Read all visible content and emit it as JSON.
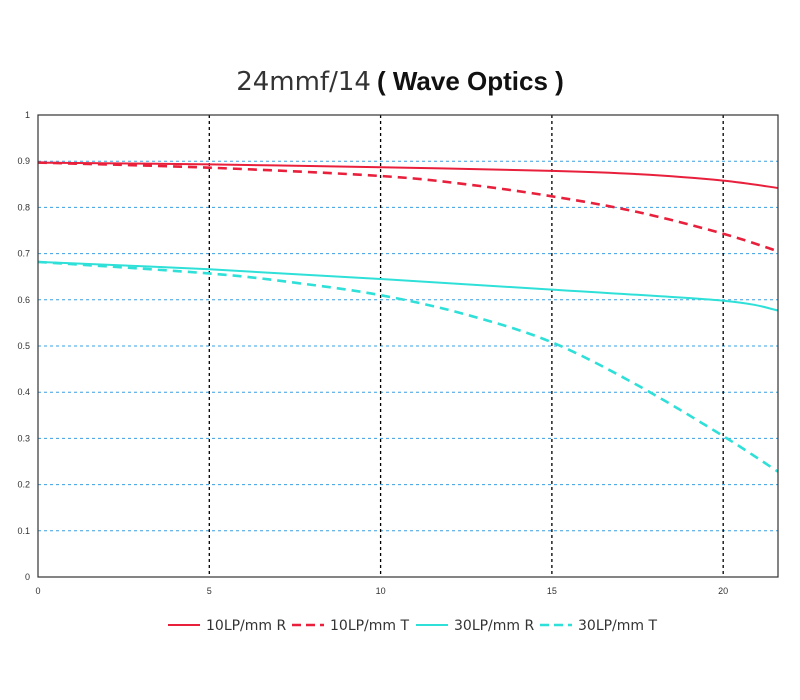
{
  "chart_data": {
    "type": "line",
    "title": "24mmf/14",
    "subtitle": "( Wave Optics )",
    "xlabel": "",
    "ylabel": "",
    "xlim": [
      0,
      21.6
    ],
    "ylim": [
      0,
      1
    ],
    "x_ticks": [
      0,
      5,
      10,
      15,
      20
    ],
    "x_tick_labels": [
      "0",
      "5",
      "10",
      "15",
      "20"
    ],
    "y_ticks": [
      0,
      0.1,
      0.2,
      0.3,
      0.4,
      0.5,
      0.6,
      0.7,
      0.8,
      0.9,
      1
    ],
    "y_tick_labels": [
      "0",
      "0.1",
      "0.2",
      "0.3",
      "0.4",
      "0.5",
      "0.6",
      "0.7",
      "0.8",
      "0.9",
      "1"
    ],
    "grid": "horizontal dashed blue, vertical dashed black at x ticks",
    "legend_position": "bottom",
    "series": [
      {
        "name": "10LP/mm R",
        "color": "#e8203c",
        "style": "solid",
        "x": [
          0,
          5,
          10,
          15,
          17.5,
          20,
          21.6
        ],
        "y": [
          0.897,
          0.893,
          0.887,
          0.879,
          0.872,
          0.858,
          0.842
        ]
      },
      {
        "name": "10LP/mm T",
        "color": "#e8203c",
        "style": "dashed",
        "x": [
          0,
          5,
          10,
          12.5,
          15,
          17.5,
          20,
          21.6
        ],
        "y": [
          0.897,
          0.886,
          0.868,
          0.85,
          0.824,
          0.79,
          0.743,
          0.705
        ]
      },
      {
        "name": "30LP/mm R",
        "color": "#2ee0d8",
        "style": "solid",
        "x": [
          0,
          5,
          10,
          15,
          20,
          21.6
        ],
        "y": [
          0.682,
          0.666,
          0.645,
          0.622,
          0.598,
          0.577
        ]
      },
      {
        "name": "30LP/mm T",
        "color": "#2ee0d8",
        "style": "dashed",
        "x": [
          0,
          5,
          7.5,
          10,
          12.5,
          15,
          17.5,
          20,
          21.6
        ],
        "y": [
          0.682,
          0.657,
          0.637,
          0.61,
          0.568,
          0.508,
          0.415,
          0.305,
          0.228
        ]
      }
    ]
  }
}
